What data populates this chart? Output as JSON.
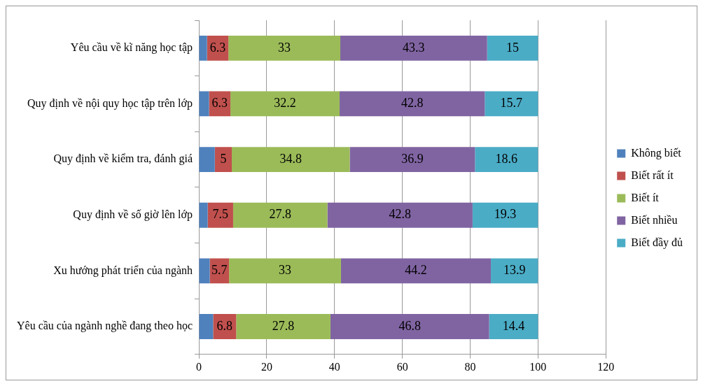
{
  "chart_data": {
    "type": "bar",
    "orientation": "horizontal",
    "stacked": true,
    "categories": [
      "Yêu cầu về kĩ năng học tập",
      "Quy định về nội quy học tập trên lớp",
      "Quy định về kiểm tra, đánh giá",
      "Quy định về số giờ lên lớp",
      "Xu hướng phát triển của ngành",
      "Yêu cầu của ngành nghề đang theo học"
    ],
    "series": [
      {
        "name": "Không biết",
        "color": "#4f81bd",
        "values": [
          2.4,
          3,
          4.7,
          2.6,
          3.2,
          4.2
        ],
        "value_labels": [
          null,
          null,
          null,
          null,
          null,
          null
        ]
      },
      {
        "name": "Biết rất ít",
        "color": "#c0504d",
        "values": [
          6.3,
          6.3,
          5,
          7.5,
          5.7,
          6.8
        ],
        "value_labels": [
          "6.3",
          "6.3",
          "5",
          "7.5",
          "5.7",
          "6.8"
        ]
      },
      {
        "name": "Biết ít",
        "color": "#9bbb59",
        "values": [
          33,
          32.2,
          34.8,
          27.8,
          33,
          27.8
        ],
        "value_labels": [
          "33",
          "32.2",
          "34.8",
          "27.8",
          "33",
          "27.8"
        ]
      },
      {
        "name": "Biết nhiều",
        "color": "#8064a2",
        "values": [
          43.3,
          42.8,
          36.9,
          42.8,
          44.2,
          46.8
        ],
        "value_labels": [
          "43.3",
          "42.8",
          "36.9",
          "42.8",
          "44.2",
          "46.8"
        ]
      },
      {
        "name": "Biết đầy đủ",
        "color": "#4bacc6",
        "values": [
          15,
          15.7,
          18.6,
          19.3,
          13.9,
          14.4
        ],
        "value_labels": [
          "15",
          "15.7",
          "18.6",
          "19.3",
          "13.9",
          "14.4"
        ]
      }
    ],
    "xlim": [
      0,
      120
    ],
    "xticks": [
      0,
      20,
      40,
      60,
      80,
      100,
      120
    ],
    "grid": "x",
    "legend": "right"
  }
}
